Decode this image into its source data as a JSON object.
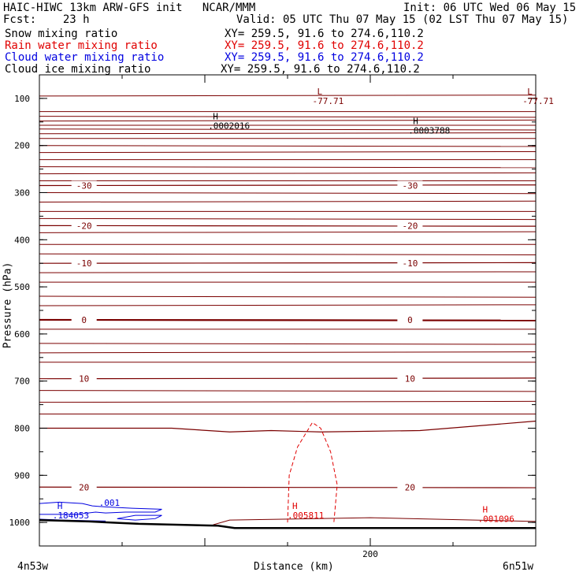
{
  "header": {
    "model_line": "HAIC-HIWC 13km ARW-GFS init   NCAR/MMM",
    "init_line": "Init: 06 UTC Wed 06 May 15",
    "fcst_line": "Fcst:    23 h",
    "valid_line": "Valid: 05 UTC Thu 07 May 15 (02 LST Thu 07 May 15)",
    "fields": [
      {
        "name": "Snow mixing ratio",
        "xy": "XY= 259.5, 91.6 to 274.6,110.2",
        "color": "#000000"
      },
      {
        "name": "Rain water mixing ratio",
        "xy": "XY= 259.5, 91.6 to 274.6,110.2",
        "color": "#e00000"
      },
      {
        "name": "Cloud water mixing ratio",
        "xy": "XY= 259.5, 91.6 to 274.6,110.2",
        "color": "#0000e0"
      },
      {
        "name": "Cloud ice mixing ratio",
        "xy": "XY= 259.5, 91.6 to 274.6,110.2",
        "color": "#000000"
      }
    ]
  },
  "chart_data": {
    "type": "line",
    "title": "",
    "ylabel": "Pressure (hPa)",
    "xlabel": "Distance (km)",
    "x_start_label": "4n53w",
    "x_end_label": "6n51w",
    "xlim": [
      0,
      300
    ],
    "ylim": [
      1050,
      50
    ],
    "x_ticks": [
      200
    ],
    "y_ticks": [
      100,
      200,
      300,
      400,
      500,
      600,
      700,
      800,
      900,
      1000
    ],
    "colors": {
      "temperature": "#7a0000",
      "rain": "#e00000",
      "cloud_water": "#0000e0",
      "ground": "#000000",
      "axis": "#000000"
    },
    "temperature_contours": [
      {
        "label": "-30",
        "pressure": 285
      },
      {
        "label": "-20",
        "pressure": 370
      },
      {
        "label": "-10",
        "pressure": 450
      },
      {
        "label": "0",
        "pressure": 570
      },
      {
        "label": "10",
        "pressure": 695
      },
      {
        "label": "20",
        "pressure": 925
      }
    ],
    "extremes": [
      {
        "type": "L",
        "value": "-77.71",
        "x": 165,
        "p": 105,
        "color": "#7a0000"
      },
      {
        "type": "L",
        "value": "-77.71",
        "x": 292,
        "p": 105,
        "color": "#7a0000"
      },
      {
        "type": "H",
        "value": ".0002016",
        "x": 102,
        "p": 158,
        "color": "#000000"
      },
      {
        "type": "H",
        "value": ".0003788",
        "x": 223,
        "p": 168,
        "color": "#000000"
      },
      {
        "type": "H",
        "value": ".184053",
        "x": 8,
        "p": 985,
        "color": "#0000e0"
      },
      {
        "type": "H",
        "value": ".005811",
        "x": 150,
        "p": 985,
        "color": "#e00000"
      },
      {
        "type": "H",
        "value": ".001096",
        "x": 265,
        "p": 992,
        "color": "#e00000"
      }
    ],
    "contour_annotations": [
      {
        "text": ".001",
        "color": "#0000e0",
        "x": 36,
        "p": 965
      }
    ]
  }
}
